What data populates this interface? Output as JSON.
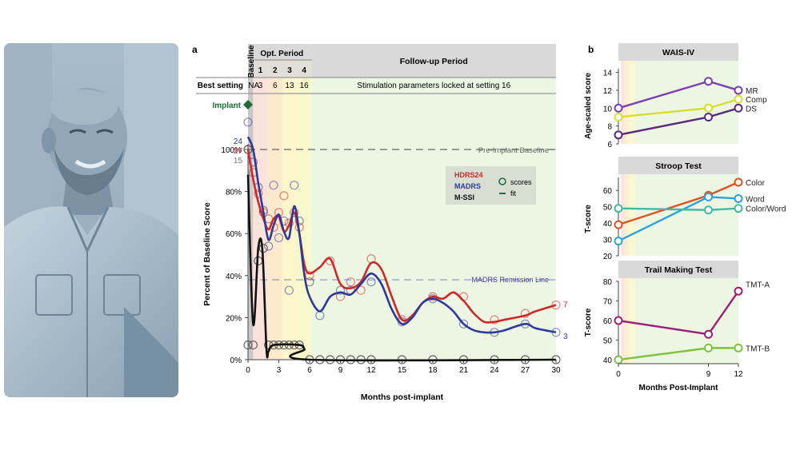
{
  "photo": {
    "alt": "portrait photograph of study participant"
  },
  "panel_labels": {
    "a": "a",
    "b": "b"
  },
  "colors": {
    "hdrs": "#cc2a2a",
    "madrs": "#2e3a9a",
    "mssi": "#111111",
    "scores_marker": "#1f6b52",
    "implant": "#1f6b3a",
    "header_bg": "#d9d9d9",
    "baseline_band": "#c8c8c8",
    "followup_band": "#edf5e3",
    "wais_mr": "#7a3fb0",
    "wais_comp": "#d7df2c",
    "wais_ds": "#5a2a7e",
    "stroop_color": "#e0521e",
    "stroop_word": "#2aa4dc",
    "stroop_colorword": "#3ebba0",
    "tmt_a": "#9c1e78",
    "tmt_b": "#7fc241"
  },
  "chart_data": [
    {
      "id": "a",
      "type": "line",
      "title": "",
      "xlabel": "Months post-implant",
      "ylabel": "Percent of Baseline Score",
      "xlim": [
        0,
        30
      ],
      "ylim": [
        0,
        100
      ],
      "xticks": [
        "0",
        "3",
        "6",
        "9",
        "12",
        "15",
        "18",
        "21",
        "24",
        "27",
        "30"
      ],
      "yticks": [
        "0%",
        "20%",
        "40%",
        "60%",
        "80%",
        "100%"
      ],
      "header": {
        "baseline": "Baseline",
        "opt_period": "Opt. Period",
        "opt_numbers": [
          "1",
          "2",
          "3",
          "4"
        ],
        "followup": "Follow-up Period",
        "best_setting_label": "Best setting",
        "best_na": "NA",
        "best_values": [
          "3",
          "6",
          "13",
          "16"
        ],
        "locked_text": "Stimulation parameters locked at setting 16",
        "implant_label": "Implant"
      },
      "reference_lines": {
        "pre_implant": {
          "label": "Pre-Implant Baseline",
          "y": 100
        },
        "remission": {
          "label": "MADRS Remission Line",
          "y": 38
        }
      },
      "legend": {
        "hdrs": "HDRS24",
        "madrs": "MADRS",
        "mssi": "M-SSI",
        "scores": "scores",
        "fit": "fit"
      },
      "start_labels": {
        "madrs": "24",
        "hdrs": "27",
        "mssi": "15"
      },
      "end_labels": {
        "hdrs": "7",
        "madrs": "3"
      },
      "series": [
        {
          "name": "HDRS24",
          "scores": [
            [
              0,
              100
            ],
            [
              0.5,
              89
            ],
            [
              1,
              79
            ],
            [
              1.5,
              70
            ],
            [
              2,
              67
            ],
            [
              2.5,
              63
            ],
            [
              3,
              70
            ],
            [
              3.5,
              78
            ],
            [
              4,
              65
            ],
            [
              4.5,
              70
            ],
            [
              5,
              63
            ],
            [
              6,
              40
            ],
            [
              8,
              47
            ],
            [
              9,
              30
            ],
            [
              10,
              37
            ],
            [
              11,
              33
            ],
            [
              12,
              48
            ],
            [
              15,
              19
            ],
            [
              18,
              30
            ],
            [
              21,
              30
            ],
            [
              24,
              19
            ],
            [
              27,
              22
            ],
            [
              30,
              26
            ]
          ],
          "fit": [
            [
              0,
              100
            ],
            [
              0.5,
              86
            ],
            [
              1,
              75
            ],
            [
              1.5,
              67
            ],
            [
              2,
              62
            ],
            [
              2.5,
              67
            ],
            [
              3,
              68
            ],
            [
              3.5,
              61
            ],
            [
              4,
              64
            ],
            [
              4.5,
              70
            ],
            [
              5,
              60
            ],
            [
              5.5,
              45
            ],
            [
              6,
              41
            ],
            [
              7,
              44
            ],
            [
              8,
              48
            ],
            [
              9,
              36
            ],
            [
              10,
              34
            ],
            [
              11,
              37
            ],
            [
              12,
              46
            ],
            [
              13,
              43
            ],
            [
              14,
              30
            ],
            [
              15,
              19
            ],
            [
              16,
              21
            ],
            [
              17,
              27
            ],
            [
              18,
              30
            ],
            [
              19,
              29
            ],
            [
              20,
              32
            ],
            [
              21,
              28
            ],
            [
              22,
              22
            ],
            [
              23,
              18
            ],
            [
              24,
              18
            ],
            [
              25,
              19
            ],
            [
              27,
              21
            ],
            [
              28,
              23
            ],
            [
              30,
              26
            ]
          ]
        },
        {
          "name": "MADRS",
          "scores": [
            [
              0,
              113
            ],
            [
              0.5,
              94
            ],
            [
              1,
              82
            ],
            [
              1.5,
              71
            ],
            [
              2,
              54
            ],
            [
              2.5,
              83
            ],
            [
              3,
              58
            ],
            [
              3.5,
              66
            ],
            [
              4,
              33
            ],
            [
              4.5,
              83
            ],
            [
              5,
              66
            ],
            [
              6,
              37
            ],
            [
              7,
              21
            ],
            [
              9,
              33
            ],
            [
              10,
              33
            ],
            [
              12,
              37
            ],
            [
              15,
              18
            ],
            [
              18,
              29
            ],
            [
              21,
              17
            ],
            [
              24,
              13
            ],
            [
              27,
              17
            ],
            [
              30,
              13
            ]
          ],
          "fit": [
            [
              0,
              106
            ],
            [
              0.5,
              100
            ],
            [
              1,
              84
            ],
            [
              1.5,
              70
            ],
            [
              2,
              57
            ],
            [
              2.5,
              64
            ],
            [
              3,
              69
            ],
            [
              3.5,
              61
            ],
            [
              4,
              58
            ],
            [
              4.5,
              73
            ],
            [
              5,
              60
            ],
            [
              5.5,
              40
            ],
            [
              6,
              30
            ],
            [
              7,
              23
            ],
            [
              8,
              30
            ],
            [
              9,
              32
            ],
            [
              10,
              31
            ],
            [
              11,
              36
            ],
            [
              12,
              41
            ],
            [
              13,
              36
            ],
            [
              14,
              24
            ],
            [
              15,
              17
            ],
            [
              16,
              20
            ],
            [
              17,
              27
            ],
            [
              18,
              29
            ],
            [
              19,
              27
            ],
            [
              20,
              23
            ],
            [
              21,
              17
            ],
            [
              22,
              14
            ],
            [
              23,
              13
            ],
            [
              24,
              13
            ],
            [
              25,
              14
            ],
            [
              27,
              17
            ],
            [
              28,
              15
            ],
            [
              30,
              13
            ]
          ]
        },
        {
          "name": "M-SSI",
          "scores": [
            [
              0,
              100
            ],
            [
              0,
              7
            ],
            [
              0.5,
              7
            ],
            [
              1,
              47
            ],
            [
              1.5,
              53
            ],
            [
              2,
              7
            ],
            [
              2.5,
              7
            ],
            [
              3,
              7
            ],
            [
              3.5,
              7
            ],
            [
              4,
              7
            ],
            [
              4.5,
              7
            ],
            [
              5,
              7
            ],
            [
              6,
              0
            ],
            [
              7,
              0
            ],
            [
              8,
              0
            ],
            [
              9,
              0
            ],
            [
              10,
              0
            ],
            [
              11,
              0
            ],
            [
              12,
              0
            ],
            [
              15,
              0
            ],
            [
              18,
              0
            ],
            [
              21,
              0
            ],
            [
              24,
              0
            ],
            [
              27,
              0
            ],
            [
              30,
              0
            ]
          ],
          "fit": [
            [
              0,
              88
            ],
            [
              0.5,
              17
            ],
            [
              1,
              53
            ],
            [
              1.4,
              52
            ],
            [
              1.8,
              5
            ],
            [
              2,
              4
            ],
            [
              2.5,
              7
            ],
            [
              5,
              7
            ],
            [
              5.5,
              5
            ],
            [
              6,
              0
            ],
            [
              30,
              0
            ]
          ]
        }
      ]
    },
    {
      "id": "b-wais",
      "type": "line",
      "title": "WAIS-IV",
      "xlabel": "",
      "ylabel": "Age-scaled score",
      "x": [
        0,
        9,
        12
      ],
      "ylim": [
        6,
        14.5
      ],
      "yticks": [
        "6",
        "8",
        "10",
        "12",
        "14"
      ],
      "series": [
        {
          "name": "MR",
          "values": [
            10,
            13,
            12
          ]
        },
        {
          "name": "Comp",
          "values": [
            9,
            10,
            11
          ]
        },
        {
          "name": "DS",
          "values": [
            7,
            9,
            10
          ]
        }
      ]
    },
    {
      "id": "b-stroop",
      "type": "line",
      "title": "Stroop Test",
      "xlabel": "",
      "ylabel": "T-score",
      "x": [
        0,
        9,
        12
      ],
      "ylim": [
        20,
        65
      ],
      "yticks": [
        "20",
        "30",
        "40",
        "50",
        "60"
      ],
      "series": [
        {
          "name": "Color",
          "values": [
            39,
            57,
            65
          ]
        },
        {
          "name": "Word",
          "values": [
            29,
            56,
            55
          ]
        },
        {
          "name": "Color/Word",
          "values": [
            49,
            48,
            49
          ]
        }
      ]
    },
    {
      "id": "b-tmt",
      "type": "line",
      "title": "Trail Making Test",
      "xlabel": "Months Post-Implant",
      "ylabel": "T-score",
      "x": [
        0,
        9,
        12
      ],
      "xticks": [
        "0",
        "9",
        "12"
      ],
      "ylim": [
        38,
        80
      ],
      "yticks": [
        "40",
        "50",
        "60",
        "70",
        "80"
      ],
      "series": [
        {
          "name": "TMT-A",
          "values": [
            60,
            53,
            75
          ]
        },
        {
          "name": "TMT-B",
          "values": [
            40,
            46,
            46
          ]
        }
      ]
    }
  ]
}
